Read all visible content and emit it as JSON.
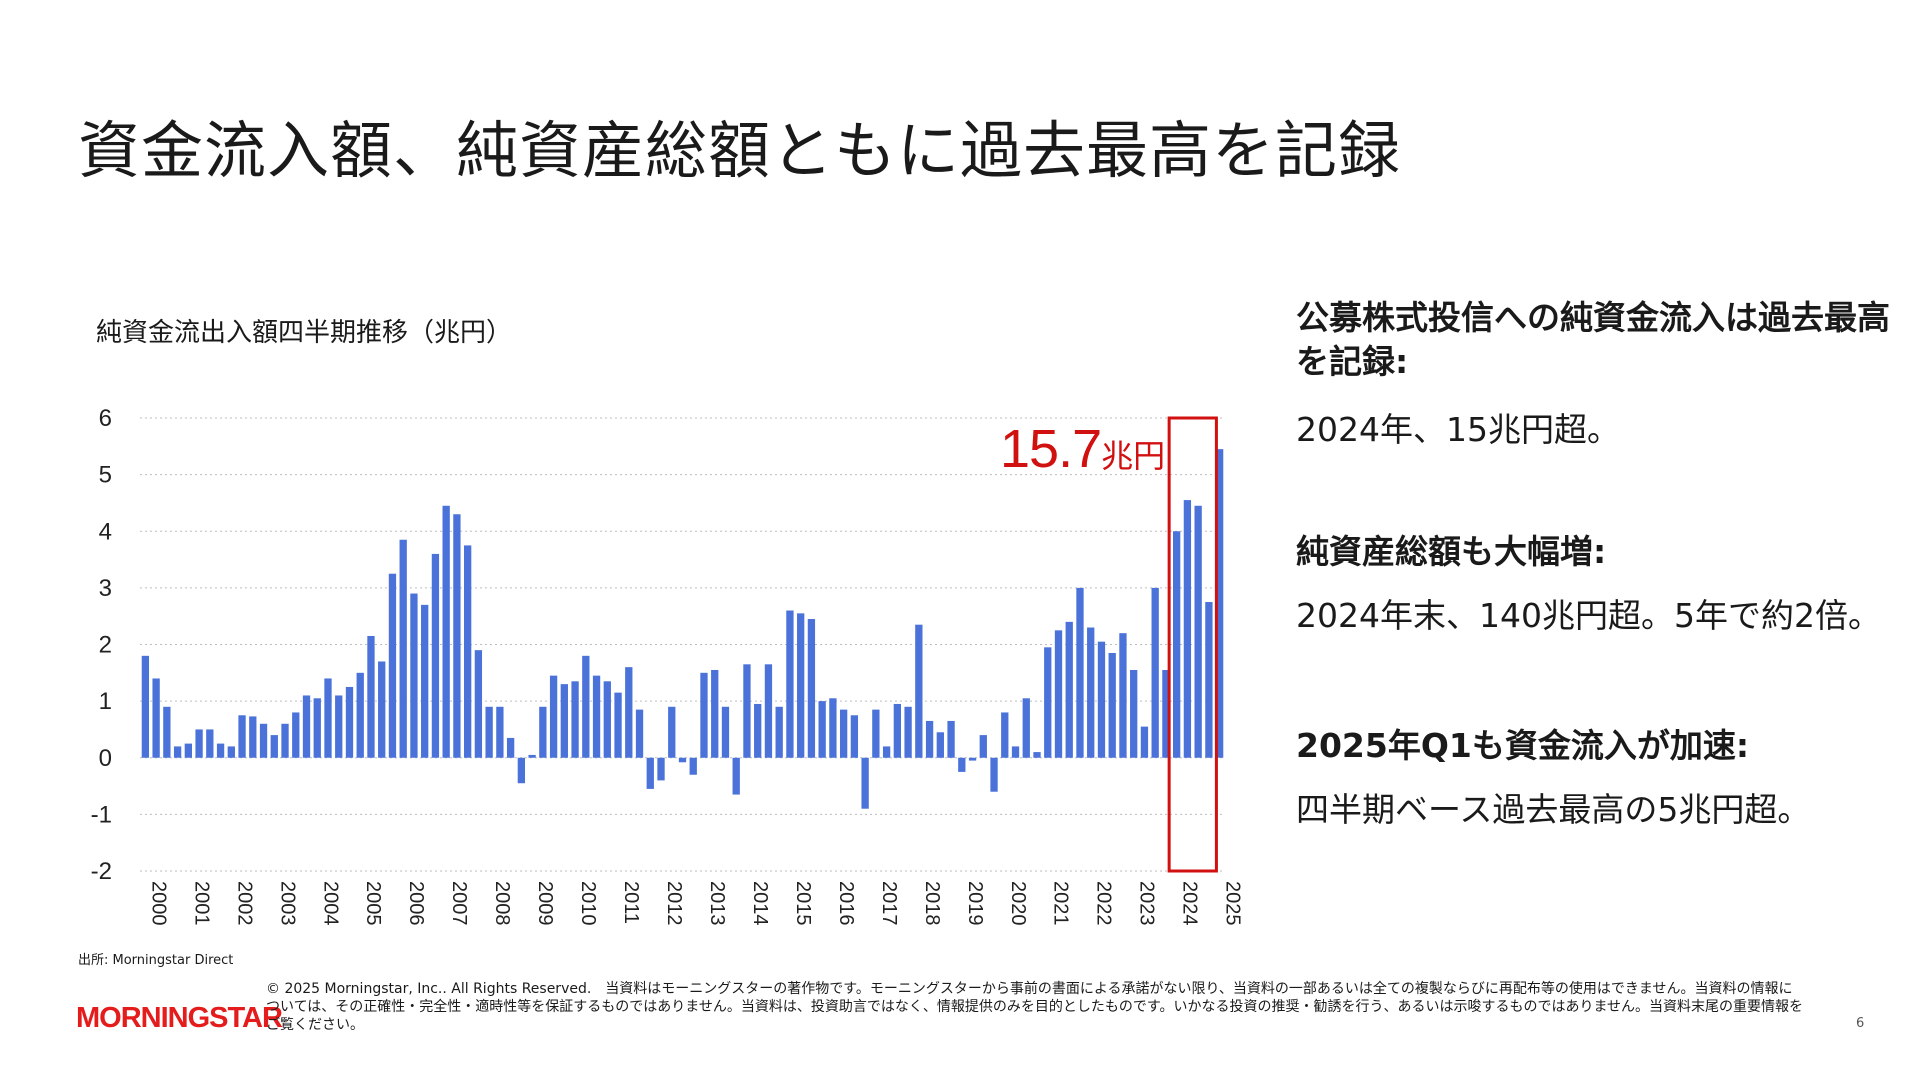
{
  "slide": {
    "title": "資金流入額、純資産総額ともに過去最高を記録",
    "page_number": "6"
  },
  "chart_data": {
    "type": "bar",
    "title": "純資金流出入額四半期推移（兆円）",
    "ylim": [
      -2,
      6
    ],
    "yticks": [
      "6",
      "5",
      "4",
      "3",
      "2",
      "1",
      "0",
      "-1",
      "-2"
    ],
    "year_labels": [
      "2000",
      "2001",
      "2002",
      "2003",
      "2004",
      "2005",
      "2006",
      "2007",
      "2008",
      "2009",
      "2010",
      "2011",
      "2012",
      "2013",
      "2014",
      "2015",
      "2016",
      "2017",
      "2018",
      "2019",
      "2020",
      "2021",
      "2022",
      "2023",
      "2024",
      "2025"
    ],
    "grid": true,
    "bar_color": "#4a72d9",
    "highlight_color": "#d11010",
    "highlight_years": [
      "2024"
    ],
    "annotation": {
      "value": "15.7",
      "unit": "兆円"
    },
    "values": [
      1.8,
      1.4,
      0.9,
      0.2,
      0.25,
      0.5,
      0.5,
      0.25,
      0.2,
      0.75,
      0.73,
      0.6,
      0.4,
      0.6,
      0.8,
      1.1,
      1.05,
      1.4,
      1.1,
      1.25,
      1.5,
      2.15,
      1.7,
      3.25,
      3.85,
      2.9,
      2.7,
      3.6,
      4.45,
      4.3,
      3.75,
      1.9,
      0.9,
      0.9,
      0.35,
      -0.45,
      0.05,
      0.9,
      1.45,
      1.3,
      1.35,
      1.8,
      1.45,
      1.35,
      1.15,
      1.6,
      0.85,
      -0.55,
      -0.4,
      0.9,
      -0.08,
      -0.3,
      1.5,
      1.55,
      0.9,
      -0.65,
      1.65,
      0.95,
      1.65,
      0.9,
      2.6,
      2.55,
      2.45,
      1.0,
      1.05,
      0.85,
      0.75,
      -0.9,
      0.85,
      0.2,
      0.95,
      0.9,
      2.35,
      0.65,
      0.45,
      0.65,
      -0.25,
      -0.05,
      0.4,
      -0.6,
      0.8,
      0.2,
      1.05,
      0.1,
      1.95,
      2.25,
      2.4,
      3.0,
      2.3,
      2.05,
      1.85,
      2.2,
      1.55,
      0.55,
      3.0,
      1.55,
      4.0,
      4.55,
      4.45,
      2.75,
      5.45
    ]
  },
  "panels": [
    {
      "heading": "公募株式投信への純資金流入は過去最高を記録:",
      "text": "2024年、15兆円超。"
    },
    {
      "heading": "純資産総額も大幅増:",
      "text": "2024年末、140兆円超。5年で約2倍。"
    },
    {
      "heading": "2025年Q1も資金流入が加速:",
      "text": "四半期ベース過去最高の5兆円超。"
    }
  ],
  "footer": {
    "source": "出所: Morningstar Direct",
    "logo_text": "MORNINGSTAR",
    "copyright": "© 2025 Morningstar, Inc.. All Rights Reserved.　当資料はモーニングスターの著作物です。モーニングスターから事前の書面による承諾がない限り、当資料の一部あるいは全ての複製ならびに再配布等の使用はできません。当資料の情報については、その正確性・完全性・適時性等を保証するものではありません。当資料は、投資助言ではなく、情報提供のみを目的としたものです。いかなる投資の推奨・勧誘を行う、あるいは示唆するものではありません。当資料末尾の重要情報をご覧ください。"
  }
}
